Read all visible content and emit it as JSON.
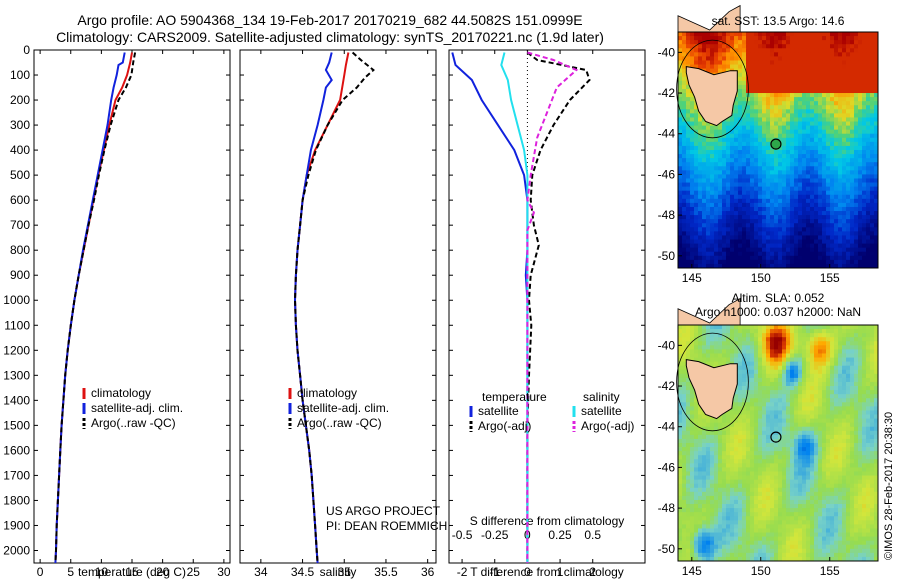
{
  "header": {
    "line1": "Argo profile: AO 5904368_134 19-Feb-2017 20170219_682 44.5082S 151.0999E",
    "line2": "Climatology: CARS2009. Satellite-adjusted climatology: synTS_20170221.nc (1.9d later)"
  },
  "colors": {
    "climatology": "#dd1111",
    "satellite": "#1122dd",
    "argo": "#000000",
    "sat_salinity": "#22e0ee",
    "argo_salinity": "#dd22dd"
  },
  "chart_data": [
    {
      "type": "line",
      "id": "temperature",
      "xlabel": "temperature (deg C)",
      "xlim": [
        -1,
        31
      ],
      "xticks": [
        0,
        5,
        10,
        15,
        20,
        25,
        30
      ],
      "ylim": [
        0,
        2050
      ],
      "yticks": [
        0,
        100,
        200,
        300,
        400,
        500,
        600,
        700,
        800,
        900,
        1000,
        1100,
        1200,
        1300,
        1400,
        1500,
        1600,
        1700,
        1800,
        1900,
        2000
      ],
      "legend": [
        "climatology",
        "satellite-adj. clim.",
        "Argo(..raw -QC)"
      ],
      "series": [
        {
          "name": "climatology",
          "color": "#dd1111",
          "points": [
            [
              15,
              10
            ],
            [
              14.7,
              50
            ],
            [
              14.2,
              100
            ],
            [
              13.4,
              150
            ],
            [
              12.3,
              200
            ],
            [
              11.3,
              300
            ],
            [
              10.4,
              400
            ],
            [
              9.5,
              500
            ],
            [
              8.7,
              600
            ],
            [
              7.9,
              700
            ],
            [
              7.1,
              800
            ],
            [
              6.3,
              900
            ],
            [
              5.6,
              1000
            ],
            [
              5.0,
              1100
            ],
            [
              4.5,
              1200
            ],
            [
              4.1,
              1300
            ],
            [
              3.8,
              1400
            ],
            [
              3.5,
              1500
            ],
            [
              3.3,
              1600
            ],
            [
              3.1,
              1700
            ],
            [
              2.9,
              1800
            ],
            [
              2.7,
              1900
            ],
            [
              2.6,
              2000
            ],
            [
              2.5,
              2050
            ]
          ]
        },
        {
          "name": "satellite-adj. clim.",
          "color": "#1122dd",
          "points": [
            [
              13.8,
              10
            ],
            [
              13.5,
              50
            ],
            [
              12.8,
              60
            ],
            [
              12.5,
              100
            ],
            [
              12,
              150
            ],
            [
              11.6,
              200
            ],
            [
              11,
              300
            ],
            [
              10.2,
              400
            ],
            [
              9.4,
              500
            ],
            [
              8.6,
              600
            ],
            [
              7.8,
              700
            ],
            [
              7.0,
              800
            ],
            [
              6.3,
              900
            ],
            [
              5.6,
              1000
            ],
            [
              5.0,
              1100
            ],
            [
              4.5,
              1200
            ],
            [
              4.1,
              1300
            ],
            [
              3.8,
              1400
            ],
            [
              3.5,
              1500
            ],
            [
              3.3,
              1600
            ],
            [
              3.1,
              1700
            ],
            [
              2.9,
              1800
            ],
            [
              2.7,
              1900
            ],
            [
              2.6,
              2000
            ],
            [
              2.5,
              2050
            ]
          ]
        },
        {
          "name": "Argo(..raw -QC)",
          "color": "#000000",
          "dashed": true,
          "points": [
            [
              15.5,
              10
            ],
            [
              15.2,
              50
            ],
            [
              14.9,
              100
            ],
            [
              14.0,
              150
            ],
            [
              12.8,
              200
            ],
            [
              11.5,
              300
            ],
            [
              10.5,
              400
            ],
            [
              9.6,
              500
            ],
            [
              8.8,
              600
            ],
            [
              7.9,
              700
            ],
            [
              7.1,
              800
            ],
            [
              6.3,
              900
            ],
            [
              5.6,
              1000
            ],
            [
              5.0,
              1100
            ],
            [
              4.5,
              1200
            ],
            [
              4.1,
              1300
            ],
            [
              3.8,
              1400
            ],
            [
              3.5,
              1500
            ],
            [
              3.3,
              1600
            ],
            [
              3.1,
              1700
            ],
            [
              2.9,
              1800
            ],
            [
              2.7,
              1900
            ],
            [
              2.6,
              2000
            ],
            [
              2.5,
              2050
            ]
          ]
        }
      ]
    },
    {
      "type": "line",
      "id": "salinity",
      "xlabel": "salinity",
      "xlim": [
        33.75,
        36.1
      ],
      "xticks": [
        34,
        34.5,
        35,
        35.5,
        36
      ],
      "ylim": [
        0,
        2050
      ],
      "legend": [
        "climatology",
        "satellite-adj. clim.",
        "Argo(..raw -QC)"
      ],
      "annotation": [
        "US ARGO PROJECT",
        "PI: DEAN ROEMMICH"
      ],
      "series": [
        {
          "name": "climatology",
          "color": "#dd1111",
          "points": [
            [
              35.05,
              10
            ],
            [
              35.02,
              60
            ],
            [
              35.0,
              100
            ],
            [
              34.95,
              200
            ],
            [
              34.8,
              300
            ],
            [
              34.65,
              400
            ],
            [
              34.55,
              500
            ],
            [
              34.5,
              600
            ],
            [
              34.47,
              700
            ],
            [
              34.44,
              800
            ],
            [
              34.42,
              900
            ],
            [
              34.41,
              1000
            ],
            [
              34.42,
              1100
            ],
            [
              34.44,
              1200
            ],
            [
              34.47,
              1300
            ],
            [
              34.5,
              1400
            ],
            [
              34.54,
              1500
            ],
            [
              34.58,
              1600
            ],
            [
              34.61,
              1700
            ],
            [
              34.63,
              1800
            ],
            [
              34.65,
              1900
            ],
            [
              34.67,
              2000
            ],
            [
              34.68,
              2050
            ]
          ]
        },
        {
          "name": "satellite-adj. clim.",
          "color": "#1122dd",
          "points": [
            [
              34.85,
              10
            ],
            [
              34.82,
              50
            ],
            [
              34.78,
              80
            ],
            [
              34.85,
              120
            ],
            [
              34.78,
              150
            ],
            [
              34.75,
              200
            ],
            [
              34.68,
              300
            ],
            [
              34.6,
              400
            ],
            [
              34.55,
              500
            ],
            [
              34.5,
              600
            ],
            [
              34.47,
              700
            ],
            [
              34.44,
              800
            ],
            [
              34.42,
              900
            ],
            [
              34.41,
              1000
            ],
            [
              34.42,
              1100
            ],
            [
              34.44,
              1200
            ],
            [
              34.47,
              1300
            ],
            [
              34.5,
              1400
            ],
            [
              34.54,
              1500
            ],
            [
              34.58,
              1600
            ],
            [
              34.61,
              1700
            ],
            [
              34.63,
              1800
            ],
            [
              34.65,
              1900
            ],
            [
              34.67,
              2000
            ],
            [
              34.68,
              2050
            ]
          ]
        },
        {
          "name": "Argo(..raw -QC)",
          "color": "#000000",
          "dashed": true,
          "points": [
            [
              35.1,
              10
            ],
            [
              35.2,
              40
            ],
            [
              35.35,
              80
            ],
            [
              35.25,
              110
            ],
            [
              35.15,
              150
            ],
            [
              34.98,
              200
            ],
            [
              34.8,
              300
            ],
            [
              34.66,
              400
            ],
            [
              34.57,
              500
            ],
            [
              34.5,
              600
            ],
            [
              34.47,
              700
            ],
            [
              34.44,
              800
            ],
            [
              34.42,
              900
            ],
            [
              34.41,
              1000
            ],
            [
              34.42,
              1100
            ],
            [
              34.44,
              1200
            ],
            [
              34.47,
              1300
            ],
            [
              34.5,
              1400
            ],
            [
              34.54,
              1500
            ],
            [
              34.58,
              1600
            ],
            [
              34.61,
              1700
            ],
            [
              34.63,
              1800
            ],
            [
              34.65,
              1900
            ],
            [
              34.67,
              2000
            ],
            [
              34.68,
              2050
            ]
          ]
        }
      ]
    },
    {
      "type": "line",
      "id": "difference",
      "xlabel": "T difference from climatology",
      "top_label": "S difference from climatology",
      "xlim": [
        -2.4,
        3.6
      ],
      "xticks": [
        -2,
        -1,
        0,
        1,
        2
      ],
      "s_ticks": [
        "-0.5",
        "-0.25",
        "0",
        "0.25",
        "0.5"
      ],
      "s_tick_positions": [
        -2,
        -1,
        0,
        1,
        2
      ],
      "ylim": [
        0,
        2050
      ],
      "legend_temperature_title": "temperature",
      "legend_salinity_title": "salinity",
      "legend": [
        "satellite",
        "Argo(-adj)",
        "satellite",
        "Argo(-adj)"
      ],
      "series": [
        {
          "name": "satellite",
          "group": "temperature",
          "color": "#1122dd",
          "points": [
            [
              -2.3,
              10
            ],
            [
              -2.2,
              60
            ],
            [
              -1.7,
              120
            ],
            [
              -1.4,
              200
            ],
            [
              -0.9,
              300
            ],
            [
              -0.4,
              400
            ],
            [
              -0.1,
              500
            ],
            [
              0,
              600
            ],
            [
              0,
              700
            ],
            [
              0,
              800
            ],
            [
              -0.05,
              900
            ],
            [
              0,
              1000
            ],
            [
              0,
              1200
            ],
            [
              0,
              1500
            ],
            [
              0,
              2050
            ]
          ]
        },
        {
          "name": "Argo(-adj)",
          "group": "temperature",
          "color": "#000000",
          "dashed": true,
          "points": [
            [
              0,
              10
            ],
            [
              0.3,
              40
            ],
            [
              1.8,
              80
            ],
            [
              1.9,
              120
            ],
            [
              1.3,
              200
            ],
            [
              0.8,
              300
            ],
            [
              0.4,
              400
            ],
            [
              0.15,
              500
            ],
            [
              0.1,
              600
            ],
            [
              0.2,
              700
            ],
            [
              0.35,
              780
            ],
            [
              0.1,
              900
            ],
            [
              0.05,
              1000
            ],
            [
              0.12,
              1100
            ],
            [
              0.05,
              1300
            ],
            [
              0,
              1500
            ],
            [
              0,
              2050
            ]
          ]
        },
        {
          "name": "satellite",
          "group": "salinity",
          "color": "#22e0ee",
          "points": [
            [
              -0.7,
              10
            ],
            [
              -0.8,
              60
            ],
            [
              -0.6,
              120
            ],
            [
              -0.5,
              200
            ],
            [
              -0.3,
              300
            ],
            [
              -0.1,
              400
            ],
            [
              0,
              500
            ],
            [
              0,
              700
            ],
            [
              0,
              2050
            ]
          ]
        },
        {
          "name": "Argo(-adj)",
          "group": "salinity",
          "color": "#dd22dd",
          "dashed": true,
          "points": [
            [
              0,
              10
            ],
            [
              0.8,
              40
            ],
            [
              1.5,
              80
            ],
            [
              0.9,
              150
            ],
            [
              0.6,
              250
            ],
            [
              0.3,
              350
            ],
            [
              0.1,
              500
            ],
            [
              0,
              600
            ],
            [
              0.2,
              650
            ],
            [
              0,
              720
            ],
            [
              0,
              2050
            ]
          ]
        }
      ]
    },
    {
      "type": "heatmap",
      "id": "sst_map",
      "title": "sat. SST: 13.5 Argo: 14.6",
      "xlim": [
        144,
        158.5
      ],
      "ylim": [
        -50.6,
        -39
      ],
      "xticks": [
        145,
        150,
        155
      ],
      "yticks": [
        -40,
        -42,
        -44,
        -46,
        -48,
        -50
      ],
      "argo_position": [
        151.1,
        -44.51
      ]
    },
    {
      "type": "heatmap",
      "id": "sla_map",
      "title_line1": "Altim. SLA: 0.052",
      "title_line2": "Argo h1000: 0.037 h2000: NaN",
      "xlim": [
        144,
        158.5
      ],
      "ylim": [
        -50.6,
        -39
      ],
      "xticks": [
        145,
        150,
        155
      ],
      "yticks": [
        -40,
        -42,
        -44,
        -46,
        -48,
        -50
      ],
      "argo_position": [
        151.1,
        -44.51
      ]
    }
  ],
  "footer": {
    "credit": "©IMOS 28-Feb-2017 20:38:30"
  }
}
